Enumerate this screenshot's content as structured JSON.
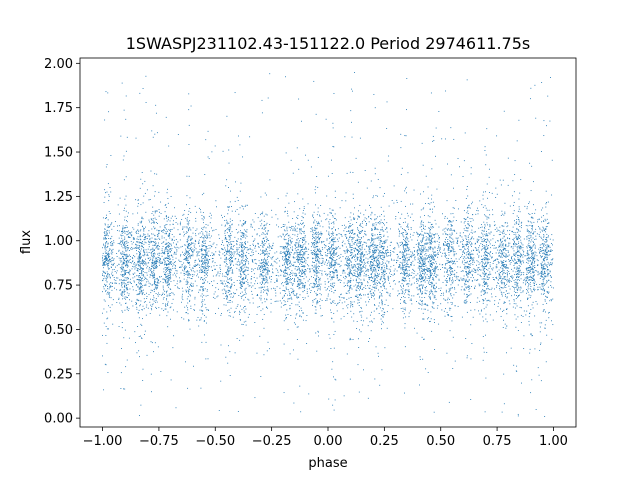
{
  "chart_data": {
    "type": "scatter",
    "title": "1SWASPJ231102.43-151122.0 Period 2974611.75s",
    "xlabel": "phase",
    "ylabel": "flux",
    "xlim": [
      -1.1,
      1.1
    ],
    "ylim": [
      -0.05,
      2.03
    ],
    "grid": false,
    "legend": "none",
    "marker_color": "#1f77b4",
    "xticks": [
      -1.0,
      -0.75,
      -0.5,
      -0.25,
      0.0,
      0.25,
      0.5,
      0.75,
      1.0
    ],
    "xtick_labels": [
      "−1.00",
      "−0.75",
      "−0.50",
      "−0.25",
      "0.00",
      "0.25",
      "0.50",
      "0.75",
      "1.00"
    ],
    "yticks": [
      0.0,
      0.25,
      0.5,
      0.75,
      1.0,
      1.25,
      1.5,
      1.75,
      2.0
    ],
    "ytick_labels": [
      "0.00",
      "0.25",
      "0.50",
      "0.75",
      "1.00",
      "1.25",
      "1.50",
      "1.75",
      "2.00"
    ],
    "data_summary": {
      "x_range": [
        -1.0,
        1.0
      ],
      "y_median": 0.88,
      "y_core_range": [
        0.55,
        1.25
      ],
      "y_full_range": [
        0.0,
        1.95
      ],
      "dense_phase_bands": [
        -0.98,
        -0.9,
        -0.83,
        -0.77,
        -0.71,
        -0.62,
        -0.55,
        -0.44,
        -0.38,
        -0.28,
        -0.18,
        -0.12,
        -0.05,
        0.02,
        0.1,
        0.14,
        0.2,
        0.24,
        0.34,
        0.42,
        0.46,
        0.54,
        0.62,
        0.7,
        0.78,
        0.84,
        0.9,
        0.96
      ]
    }
  }
}
